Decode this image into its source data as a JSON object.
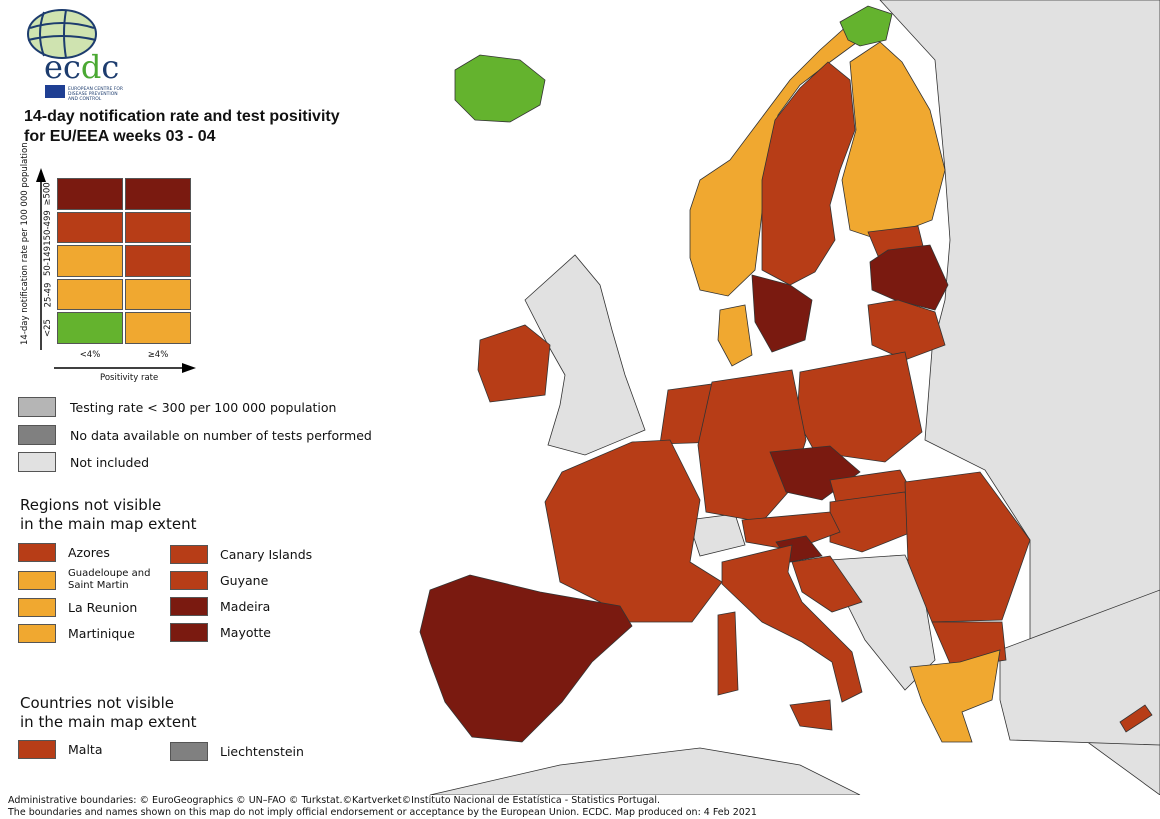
{
  "logo": {
    "text": "ecdc",
    "subtitle": "EUROPEAN CENTRE FOR DISEASE PREVENTION AND CONTROL"
  },
  "title_line1": "14-day notification rate and test positivity",
  "title_line2": "for EU/EEA weeks 03 - 04",
  "colors": {
    "dark_red": "#7a1a10",
    "red": "#b73d17",
    "orange": "#f0a830",
    "green": "#64b32e",
    "grey_low_testing": "#b5b5b5",
    "grey_no_data": "#808080",
    "not_included": "#e1e1e1",
    "sea": "#ffffff"
  },
  "matrix": {
    "y_axis_label": "14-day notification rate per 100 000 population",
    "x_axis_label": "Positivity rate",
    "rows": [
      {
        "label": "≥500",
        "cells": [
          "dark_red",
          "dark_red"
        ]
      },
      {
        "label": "150-499",
        "cells": [
          "red",
          "red"
        ]
      },
      {
        "label": "50-149",
        "cells": [
          "orange",
          "red"
        ]
      },
      {
        "label": "25-49",
        "cells": [
          "orange",
          "orange"
        ]
      },
      {
        "label": "<25",
        "cells": [
          "green",
          "orange"
        ]
      }
    ],
    "columns": [
      "<4%",
      "≥4%"
    ]
  },
  "other_legend": [
    {
      "label": "Testing rate < 300 per 100 000 population",
      "color": "grey_low_testing"
    },
    {
      "label": "No data available on number of tests performed",
      "color": "grey_no_data"
    },
    {
      "label": "Not included",
      "color": "not_included"
    }
  ],
  "regions_heading": [
    "Regions not visible",
    "in the main map extent"
  ],
  "regions": [
    {
      "label": "Azores",
      "color": "red"
    },
    {
      "label": "Guadeloupe and Saint Martin",
      "color": "orange"
    },
    {
      "label": "La Reunion",
      "color": "orange"
    },
    {
      "label": "Martinique",
      "color": "orange"
    },
    {
      "label": "Canary Islands",
      "color": "red"
    },
    {
      "label": "Guyane",
      "color": "red"
    },
    {
      "label": "Madeira",
      "color": "dark_red"
    },
    {
      "label": "Mayotte",
      "color": "dark_red"
    }
  ],
  "countries_heading": [
    "Countries not visible",
    "in the main map extent"
  ],
  "countries": [
    {
      "label": "Malta",
      "color": "red"
    },
    {
      "label": "Liechtenstein",
      "color": "grey_no_data"
    }
  ],
  "footer": {
    "line1": "Administrative boundaries: © EuroGeographics © UN–FAO © Turkstat.©Kartverket©Instituto Nacional de Estatística - Statistics Portugal.",
    "line2": "The boundaries and names shown on this map do not imply official endorsement or acceptance by the European Union. ECDC. Map produced on: 4 Feb 2021"
  }
}
